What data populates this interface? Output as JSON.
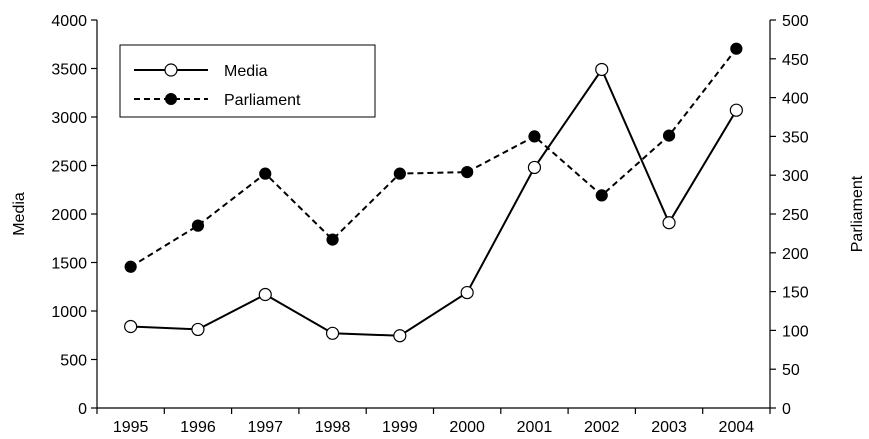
{
  "chart_data": {
    "type": "line",
    "categories": [
      "1995",
      "1996",
      "1997",
      "1998",
      "1999",
      "2000",
      "2001",
      "2002",
      "2003",
      "2004"
    ],
    "y_left": {
      "label": "Media",
      "ylim": [
        0,
        4000
      ],
      "ticks": [
        "0",
        "500",
        "1000",
        "1500",
        "2000",
        "2500",
        "3000",
        "3500",
        "4000"
      ]
    },
    "y_right": {
      "label": "Parliament",
      "ylim": [
        0,
        500
      ],
      "ticks": [
        "0",
        "50",
        "100",
        "150",
        "200",
        "250",
        "300",
        "350",
        "400",
        "450",
        "500"
      ]
    },
    "series": [
      {
        "name": "Media",
        "axis": "left",
        "line_style": "solid",
        "marker": "open-circle",
        "values": [
          840,
          810,
          1170,
          770,
          745,
          1190,
          2480,
          3490,
          1910,
          3070
        ]
      },
      {
        "name": "Parliament",
        "axis": "right",
        "line_style": "dashed",
        "marker": "filled-circle",
        "values": [
          182,
          235,
          302,
          217,
          302,
          304,
          350,
          274,
          351,
          463
        ]
      }
    ],
    "legend": {
      "position": "top-left"
    },
    "grid": false
  }
}
